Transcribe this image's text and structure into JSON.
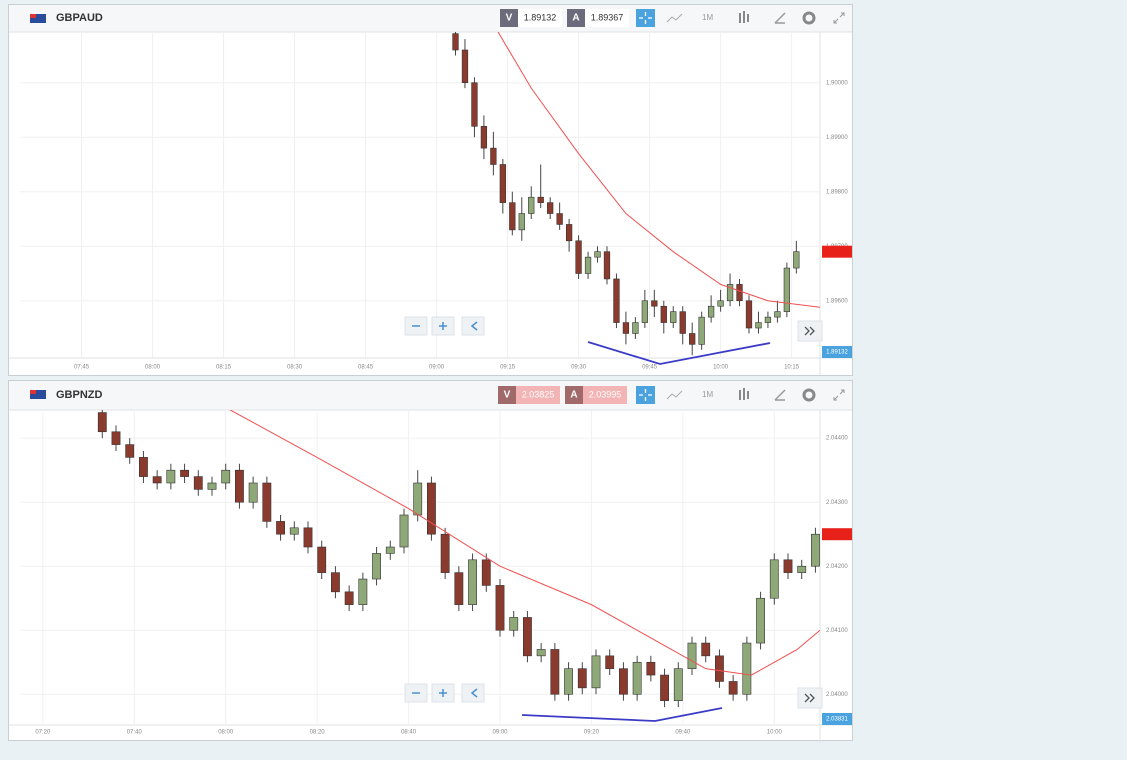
{
  "chart_data": [
    {
      "type": "candlestick",
      "title": "GBPAUD",
      "bid_label": "V",
      "bid": "1.89132",
      "ask_label": "A",
      "ask": "1.89367",
      "interval": "1M",
      "price_tag": "1.89132",
      "up_color": "#8fa878",
      "down_color": "#8b3b2e",
      "grid": true,
      "x": [
        544,
        546,
        548,
        550,
        552,
        554,
        556,
        558,
        560,
        562,
        564,
        566,
        568,
        570,
        572,
        574,
        576,
        578,
        580,
        582,
        584,
        586,
        588,
        590,
        592,
        594,
        596,
        598,
        600,
        602,
        604,
        606,
        608,
        610,
        612,
        614,
        616
      ],
      "open": [
        1.9009,
        1.9006,
        1.9,
        1.8992,
        1.8988,
        1.8985,
        1.8978,
        1.8973,
        1.8976,
        1.8979,
        1.8978,
        1.8976,
        1.8974,
        1.8971,
        1.8965,
        1.8968,
        1.8969,
        1.8964,
        1.8956,
        1.8954,
        1.8956,
        1.896,
        1.8959,
        1.8956,
        1.8958,
        1.8954,
        1.8952,
        1.8957,
        1.8959,
        1.896,
        1.8963,
        1.896,
        1.8955,
        1.8956,
        1.8957,
        1.8958,
        1.8966
      ],
      "high": [
        1.901,
        1.9008,
        1.9001,
        1.8994,
        1.8991,
        1.8986,
        1.898,
        1.8979,
        1.8981,
        1.8985,
        1.8979,
        1.8978,
        1.8975,
        1.8972,
        1.8969,
        1.897,
        1.897,
        1.8965,
        1.8958,
        1.8957,
        1.8962,
        1.8962,
        1.896,
        1.8959,
        1.8959,
        1.8956,
        1.8958,
        1.8961,
        1.8962,
        1.8965,
        1.8964,
        1.8961,
        1.8958,
        1.8958,
        1.896,
        1.8967,
        1.8971
      ],
      "low": [
        1.9005,
        1.8999,
        1.899,
        1.8986,
        1.8983,
        1.8976,
        1.8972,
        1.8971,
        1.8975,
        1.8977,
        1.8975,
        1.8973,
        1.8969,
        1.8964,
        1.8964,
        1.8967,
        1.8963,
        1.8955,
        1.8952,
        1.8953,
        1.8955,
        1.8957,
        1.8954,
        1.8955,
        1.8952,
        1.895,
        1.8951,
        1.8956,
        1.8958,
        1.8959,
        1.8959,
        1.8954,
        1.8954,
        1.8955,
        1.8956,
        1.8957,
        1.8965
      ],
      "close": [
        1.9006,
        1.9,
        1.8992,
        1.8988,
        1.8985,
        1.8978,
        1.8973,
        1.8976,
        1.8979,
        1.8978,
        1.8976,
        1.8974,
        1.8971,
        1.8965,
        1.8968,
        1.8969,
        1.8964,
        1.8956,
        1.8954,
        1.8956,
        1.896,
        1.8959,
        1.8956,
        1.8958,
        1.8954,
        1.8952,
        1.8957,
        1.8959,
        1.896,
        1.8963,
        1.896,
        1.8955,
        1.8956,
        1.8957,
        1.8958,
        1.8966,
        1.8969
      ],
      "ma": {
        "color": "#f05050",
        "x": [
          553,
          560,
          570,
          580,
          590,
          600,
          610,
          621
        ],
        "values": [
          1.90093,
          1.8999,
          1.8987,
          1.8976,
          1.8969,
          1.8963,
          1.896,
          1.89588
        ]
      },
      "xlim": [
        452,
        621
      ],
      "ylim": [
        1.89495,
        1.90093
      ],
      "xticks": [
        {
          "value": 465,
          "label": "07:45"
        },
        {
          "value": 480,
          "label": "08:00"
        },
        {
          "value": 495,
          "label": "08:15"
        },
        {
          "value": 510,
          "label": "08:30"
        },
        {
          "value": 525,
          "label": "08:45"
        },
        {
          "value": 540,
          "label": "09:00"
        },
        {
          "value": 555,
          "label": "09:15"
        },
        {
          "value": 570,
          "label": "09:30"
        },
        {
          "value": 585,
          "label": "09:45"
        },
        {
          "value": 600,
          "label": "10:00"
        },
        {
          "value": 615,
          "label": "10:15"
        }
      ],
      "yticks": [
        {
          "value": 1.896,
          "label": "1.89600"
        },
        {
          "value": 1.897,
          "label": "1.89700"
        },
        {
          "value": 1.898,
          "label": "1.89800"
        },
        {
          "value": 1.899,
          "label": "1.89900"
        },
        {
          "value": 1.9,
          "label": "1.90000"
        }
      ]
    },
    {
      "type": "candlestick",
      "title": "GBPNZD",
      "bid_label": "V",
      "bid": "2.03825",
      "ask_label": "A",
      "ask": "2.03995",
      "interval": "1M",
      "price_tag": "2.03831",
      "up_color": "#8fa878",
      "down_color": "#8b3b2e",
      "grid": true,
      "x": [
        453,
        456,
        459,
        462,
        465,
        468,
        471,
        474,
        477,
        480,
        483,
        486,
        489,
        492,
        495,
        498,
        501,
        504,
        507,
        510,
        513,
        516,
        519,
        522,
        525,
        528,
        531,
        534,
        537,
        540,
        543,
        546,
        549,
        552,
        555,
        558,
        561,
        564,
        567,
        570,
        573,
        576,
        579,
        582,
        585,
        588,
        591,
        594,
        597,
        600,
        603,
        606,
        609
      ],
      "open": [
        2.0444,
        2.0441,
        2.0439,
        2.0437,
        2.0434,
        2.0433,
        2.0435,
        2.0434,
        2.0432,
        2.0433,
        2.0435,
        2.043,
        2.0433,
        2.0427,
        2.0425,
        2.0426,
        2.0423,
        2.0419,
        2.0416,
        2.0414,
        2.0418,
        2.0422,
        2.0423,
        2.0428,
        2.0433,
        2.0425,
        2.0419,
        2.0414,
        2.0421,
        2.0417,
        2.041,
        2.0412,
        2.0406,
        2.0407,
        2.04,
        2.0404,
        2.0401,
        2.0406,
        2.0404,
        2.04,
        2.0405,
        2.0403,
        2.0399,
        2.0404,
        2.0408,
        2.0406,
        2.0402,
        2.04,
        2.0408,
        2.0415,
        2.0421,
        2.0419,
        2.042
      ],
      "high": [
        2.0445,
        2.0442,
        2.044,
        2.0438,
        2.0435,
        2.0436,
        2.0436,
        2.0435,
        2.0434,
        2.0436,
        2.0436,
        2.0434,
        2.0434,
        2.0428,
        2.0427,
        2.0427,
        2.0424,
        2.042,
        2.0417,
        2.0419,
        2.0423,
        2.0424,
        2.0429,
        2.0435,
        2.0434,
        2.0426,
        2.042,
        2.0422,
        2.0422,
        2.0418,
        2.0413,
        2.0413,
        2.0408,
        2.0408,
        2.0405,
        2.0405,
        2.0407,
        2.0407,
        2.0405,
        2.0406,
        2.0406,
        2.0404,
        2.0405,
        2.0409,
        2.0409,
        2.0407,
        2.0403,
        2.0409,
        2.0416,
        2.0422,
        2.0422,
        2.0421,
        2.0426
      ],
      "low": [
        2.044,
        2.0438,
        2.0436,
        2.0433,
        2.0432,
        2.0432,
        2.0433,
        2.0431,
        2.0431,
        2.0432,
        2.0429,
        2.0429,
        2.0426,
        2.0424,
        2.0424,
        2.0422,
        2.0418,
        2.0415,
        2.0413,
        2.0413,
        2.0417,
        2.0421,
        2.0422,
        2.0427,
        2.0424,
        2.0418,
        2.0413,
        2.0413,
        2.0416,
        2.0409,
        2.0409,
        2.0405,
        2.0405,
        2.0399,
        2.0399,
        2.04,
        2.04,
        2.0403,
        2.0399,
        2.0399,
        2.0402,
        2.0398,
        2.0398,
        2.0403,
        2.0405,
        2.0401,
        2.0399,
        2.0399,
        2.0407,
        2.0414,
        2.0418,
        2.0418,
        2.0419
      ],
      "close": [
        2.0441,
        2.0439,
        2.0437,
        2.0434,
        2.0433,
        2.0435,
        2.0434,
        2.0432,
        2.0433,
        2.0435,
        2.043,
        2.0433,
        2.0427,
        2.0425,
        2.0426,
        2.0423,
        2.0419,
        2.0416,
        2.0414,
        2.0418,
        2.0422,
        2.0423,
        2.0428,
        2.0433,
        2.0425,
        2.0419,
        2.0414,
        2.0421,
        2.0417,
        2.041,
        2.0412,
        2.0406,
        2.0407,
        2.04,
        2.0404,
        2.0401,
        2.0406,
        2.0404,
        2.04,
        2.0405,
        2.0403,
        2.0399,
        2.0404,
        2.0408,
        2.0406,
        2.0402,
        2.04,
        2.0408,
        2.0415,
        2.0421,
        2.0419,
        2.042,
        2.0425
      ],
      "ma": {
        "color": "#f05050",
        "x": [
          481,
          500,
          520,
          540,
          560,
          575,
          585,
          595,
          605,
          610
        ],
        "values": [
          2.04444,
          2.0437,
          2.0429,
          2.042,
          2.0414,
          2.0408,
          2.0404,
          2.0403,
          2.0407,
          2.041
        ]
      },
      "xlim": [
        435,
        610
      ],
      "ylim": [
        2.03952,
        2.04444
      ],
      "xticks": [
        {
          "value": 440,
          "label": "07:20"
        },
        {
          "value": 460,
          "label": "07:40"
        },
        {
          "value": 480,
          "label": "08:00"
        },
        {
          "value": 500,
          "label": "08:20"
        },
        {
          "value": 520,
          "label": "08:40"
        },
        {
          "value": 540,
          "label": "09:00"
        },
        {
          "value": 560,
          "label": "09:20"
        },
        {
          "value": 580,
          "label": "09:40"
        },
        {
          "value": 600,
          "label": "10:00"
        }
      ],
      "yticks": [
        {
          "value": 2.04,
          "label": "2.04000"
        },
        {
          "value": 2.041,
          "label": "2.04100"
        },
        {
          "value": 2.042,
          "label": "2.04200"
        },
        {
          "value": 2.043,
          "label": "2.04300"
        },
        {
          "value": 2.044,
          "label": "2.04400"
        }
      ]
    }
  ]
}
